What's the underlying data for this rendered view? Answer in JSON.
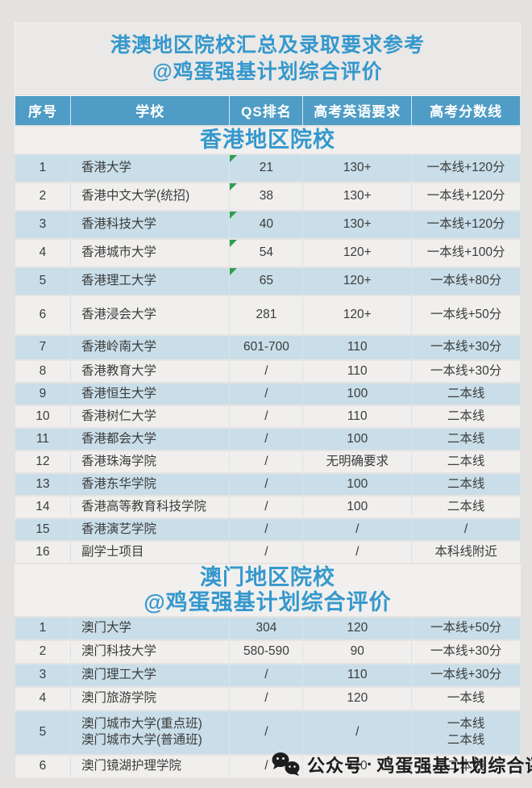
{
  "page_title": {
    "line1": "港澳地区院校汇总及录取要求参考",
    "line2": "@鸡蛋强基计划综合评价"
  },
  "columns": [
    "序号",
    "学校",
    "QS排名",
    "高考英语要求",
    "高考分数线"
  ],
  "sections": [
    {
      "header_lines": [
        "香港地区院校"
      ],
      "rows": [
        {
          "no": "1",
          "school": "香港大学",
          "qs": "21",
          "english": "130+",
          "score": "一本线+120分",
          "flag": true
        },
        {
          "no": "2",
          "school": "香港中文大学(统招)",
          "qs": "38",
          "english": "130+",
          "score": "一本线+120分",
          "flag": true
        },
        {
          "no": "3",
          "school": "香港科技大学",
          "qs": "40",
          "english": "130+",
          "score": "一本线+120分",
          "flag": true
        },
        {
          "no": "4",
          "school": "香港城市大学",
          "qs": "54",
          "english": "120+",
          "score": "一本线+100分",
          "flag": true
        },
        {
          "no": "5",
          "school": "香港理工大学",
          "qs": "65",
          "english": "120+",
          "score": "一本线+80分",
          "flag": true
        },
        {
          "no": "6",
          "school": "香港浸会大学",
          "qs": "281",
          "english": "120+",
          "score": "一本线+50分",
          "flag": false
        },
        {
          "no": "7",
          "school": "香港岭南大学",
          "qs": "601-700",
          "english": "110",
          "score": "一本线+30分",
          "flag": false
        },
        {
          "no": "8",
          "school": "香港教育大学",
          "qs": "/",
          "english": "110",
          "score": "一本线+30分",
          "flag": false
        },
        {
          "no": "9",
          "school": "香港恒生大学",
          "qs": "/",
          "english": "100",
          "score": "二本线",
          "flag": false
        },
        {
          "no": "10",
          "school": "香港树仁大学",
          "qs": "/",
          "english": "110",
          "score": "二本线",
          "flag": false
        },
        {
          "no": "11",
          "school": "香港都会大学",
          "qs": "/",
          "english": "100",
          "score": "二本线",
          "flag": false
        },
        {
          "no": "12",
          "school": "香港珠海学院",
          "qs": "/",
          "english": "无明确要求",
          "score": "二本线",
          "flag": false
        },
        {
          "no": "13",
          "school": "香港东华学院",
          "qs": "/",
          "english": "100",
          "score": "二本线",
          "flag": false
        },
        {
          "no": "14",
          "school": "香港高等教育科技学院",
          "qs": "/",
          "english": "100",
          "score": "二本线",
          "flag": false
        },
        {
          "no": "15",
          "school": "香港演艺学院",
          "qs": "/",
          "english": "/",
          "score": "/",
          "flag": false
        },
        {
          "no": "16",
          "school": "副学士项目",
          "qs": "/",
          "english": "/",
          "score": "本科线附近",
          "flag": false
        }
      ]
    },
    {
      "header_lines": [
        "澳门地区院校",
        "@鸡蛋强基计划综合评价"
      ],
      "rows": [
        {
          "no": "1",
          "school": "澳门大学",
          "qs": "304",
          "english": "120",
          "score": "一本线+50分",
          "flag": false
        },
        {
          "no": "2",
          "school": "澳门科技大学",
          "qs": "580-590",
          "english": "90",
          "score": "一本线+30分",
          "flag": false
        },
        {
          "no": "3",
          "school": "澳门理工大学",
          "qs": "/",
          "english": "110",
          "score": "一本线+30分",
          "flag": false
        },
        {
          "no": "4",
          "school": "澳门旅游学院",
          "qs": "/",
          "english": "120",
          "score": "一本线",
          "flag": false
        },
        {
          "no": "5",
          "school": "澳门城市大学(重点班)\n澳门城市大学(普通班)",
          "qs": "/",
          "english": "/",
          "score": "一本线\n二本线",
          "flag": false
        },
        {
          "no": "6",
          "school": "澳门镜湖护理学院",
          "qs": "/",
          "english": "110",
          "score": "二本线",
          "flag": false
        }
      ]
    }
  ],
  "watermark": {
    "icon": "wechat-icon",
    "label": "公众号",
    "separator": "·",
    "account": "鸡蛋强基计划综合评价"
  },
  "colors": {
    "page_bg": "#e3e2e0",
    "accent_blue": "#3598cd",
    "header_bg": "#4f9dc6",
    "row_blue": "#c9dee9",
    "row_white": "#f0efed",
    "flag_green": "#2e9e4e",
    "watermark_text": "#1d1d1d"
  }
}
